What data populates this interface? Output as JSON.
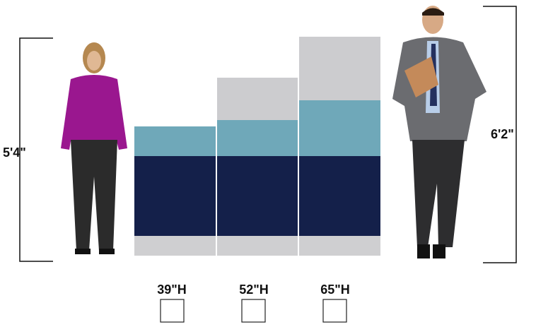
{
  "heights": {
    "left": "5'4\"",
    "right": "6'2\""
  },
  "options": [
    {
      "label": "39\"H"
    },
    {
      "label": "52\"H"
    },
    {
      "label": "65\"H"
    }
  ]
}
